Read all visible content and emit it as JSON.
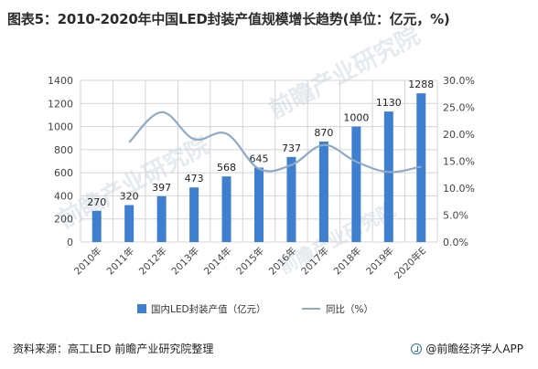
{
  "title": "图表5：2010-2020年中国LED封装产值规模增长趋势(单位：亿元，%)",
  "watermark": "前瞻产业研究院",
  "source": "资料来源：高工LED 前瞻产业研究院整理",
  "footer_brand": "@前瞻经济学人APP",
  "colors": {
    "bar": "#3f7fcf",
    "line": "#8fa9c9",
    "grid": "#d4d4d4",
    "watermark": "#e3e8ee"
  },
  "chart_data": {
    "type": "bar",
    "categories": [
      "2010年",
      "2011年",
      "2012年",
      "2013年",
      "2014年",
      "2015年",
      "2016年",
      "2017年",
      "2018年",
      "2019年",
      "2020年E"
    ],
    "series": [
      {
        "name": "国内LED封装产值（亿元）",
        "type": "bar",
        "axis": "left",
        "values": [
          270,
          320,
          397,
          473,
          568,
          645,
          737,
          870,
          1000,
          1130,
          1288
        ]
      },
      {
        "name": "同比（%）",
        "type": "line",
        "axis": "right",
        "values": [
          null,
          18.5,
          24.1,
          19.1,
          20.1,
          13.6,
          14.3,
          18.0,
          14.9,
          13.0,
          14.0
        ]
      }
    ],
    "ylim_left": [
      0,
      1400
    ],
    "yticks_left": [
      "0",
      "200",
      "400",
      "600",
      "800",
      "1000",
      "1200",
      "1400"
    ],
    "ylim_right": [
      0,
      30
    ],
    "yticks_right": [
      "0.0%",
      "5.0%",
      "10.0%",
      "15.0%",
      "20.0%",
      "25.0%",
      "30.0%"
    ],
    "grid": true,
    "legend_position": "bottom"
  }
}
